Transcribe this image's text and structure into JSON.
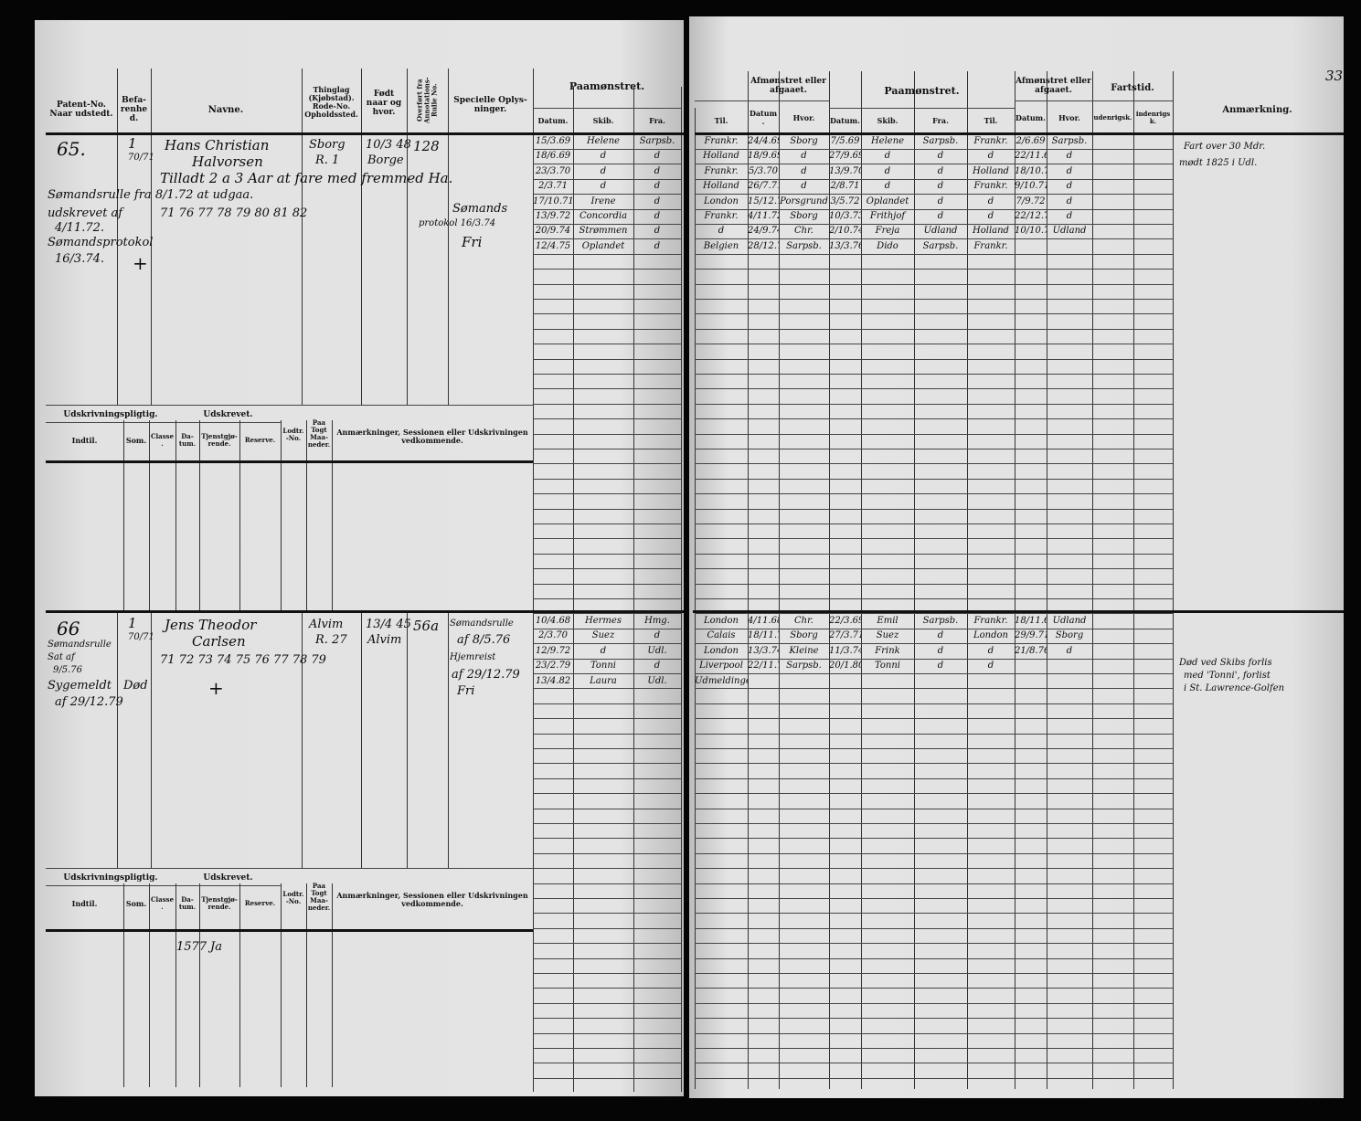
{
  "page_number": "33",
  "headers": {
    "patent": "Patent-No. Naar udstedt.",
    "befarenhed": "Befa-renhed.",
    "navne": "Navne.",
    "thinglag": "Thinglag (Kjøbstad). Rode-No. Opholdssted.",
    "fodt": "Født naar og hvor.",
    "overfort": "Overført fra Annotations-Rulle No.",
    "specielle": "Specielle Oplys-ninger.",
    "paamonstret": "Paamønstret.",
    "datum": "Datum.",
    "skib": "Skib.",
    "fra": "Fra.",
    "til": "Til.",
    "afmonstret": "Afmønstret eller afgaaet.",
    "hvor": "Hvor.",
    "fartstid": "Fartstid.",
    "udenrigsk": "udenrigsk.",
    "indenrigsk": "indenrigsk.",
    "anmaerkning": "Anmærkning."
  },
  "sub_headers": {
    "udskrivningspligtig": "Udskrivningspligtig.",
    "udskrevet": "Udskrevet.",
    "indtil": "Indtil.",
    "som": "Som.",
    "classe": "Classe.",
    "datum": "Da-tum.",
    "tjenstgjorende": "Tjenstgjø-rende.",
    "reserve": "Reserve.",
    "lodtr": "Lodtr.-No.",
    "paa_togt": "Paa Togt Maa-neder.",
    "anmaerkninger": "Anmærkninger, Sessionen eller Udskrivningen vedkommende."
  },
  "entries": [
    {
      "number": "65.",
      "befarenhed": "1",
      "befarenhed_years": "70/71",
      "name_first": "Hans Christian",
      "name_last": "Halvorsen",
      "thinglag": "Sborg",
      "rode": "R. 1",
      "fodt_date": "10/3 48",
      "fodt_place": "Borge",
      "overfort": "128",
      "note_line1": "Tilladt 2 a 3 Aar at fare med fremmed Ha.",
      "note_line2": "Sømandsrulle fra 8/1.72 at udgaa.",
      "years": "71 76 77 78 79 80 81 82",
      "patent_note1": "udskrevet af",
      "patent_note2": "4/11.72.",
      "patent_note3": "Sømandsprotokol",
      "patent_note4": "16/3.74.",
      "special1": "Sømands",
      "special2": "protokol 16/3.74",
      "special3": "Fri",
      "cross": "+",
      "left_rows": [
        [
          "15/3.69",
          "Helene",
          "Sarpsb."
        ],
        [
          "18/6.69",
          "d",
          "d"
        ],
        [
          "23/3.70",
          "d",
          "d"
        ],
        [
          "2/3.71",
          "d",
          "d"
        ],
        [
          "17/10.71",
          "Irene",
          "d"
        ],
        [
          "13/9.72",
          "Concordia",
          "d"
        ],
        [
          "20/9.74",
          "Strømmen",
          "d"
        ],
        [
          "12/4.75",
          "Oplandet",
          "d"
        ]
      ],
      "right_rows": [
        [
          "Frankr.",
          "24/4.69",
          "Sborg",
          "7/5.69",
          "Helene",
          "Sarpsb.",
          "Frankr.",
          "2/6.69",
          "Sarpsb."
        ],
        [
          "Holland",
          "18/9.69",
          "d",
          "27/9.69",
          "d",
          "d",
          "d",
          "22/11.69",
          "d"
        ],
        [
          "Frankr.",
          "5/3.70",
          "d",
          "13/9.70",
          "d",
          "d",
          "Holland",
          "18/10.70",
          "d"
        ],
        [
          "Holland",
          "26/7.71",
          "d",
          "2/8.71",
          "d",
          "d",
          "Frankr.",
          "9/10.71",
          "d"
        ],
        [
          "London",
          "15/12.71",
          "Porsgrund",
          "3/5.72",
          "Oplandet",
          "d",
          "d",
          "7/9.72",
          "d"
        ],
        [
          "Frankr.",
          "4/11.72",
          "Sborg",
          "10/3.73",
          "Frithjof",
          "d",
          "d",
          "22/12.73",
          "d"
        ],
        [
          "d",
          "24/9.74",
          "Chr.",
          "2/10.74",
          "Freja",
          "Udland",
          "Holland",
          "10/10.74",
          "Udland"
        ],
        [
          "Belgien",
          "28/12.75",
          "Sarpsb.",
          "13/3.76",
          "Dido",
          "Sarpsb.",
          "Frankr.",
          "",
          ""
        ]
      ],
      "remark1": "Fart over 30 Mdr.",
      "remark2": "mødt 1825 i Udl."
    },
    {
      "number": "66",
      "befarenhed": "1",
      "befarenhed_years": "70/71",
      "name_first": "Jens Theodor",
      "name_last": "Carlsen",
      "thinglag": "Alvim",
      "rode": "R. 27",
      "fodt_date": "13/4 45",
      "fodt_place": "Alvim",
      "overfort": "56a",
      "years": "71 72 73 74 75 76 77 78 79",
      "patent_note1": "Sømandsrulle",
      "patent_note2": "Sat af",
      "patent_note3": "9/5.76",
      "patent_note4": "Sygemeldt",
      "patent_note5": "af 29/12.79",
      "dod": "Død",
      "cross": "+",
      "special1": "Sømandsrulle",
      "special2": "af 8/5.76",
      "special3": "Hjemreist",
      "special4": "af 29/12.79",
      "special5": "Fri",
      "left_rows": [
        [
          "10/4.68",
          "Hermes",
          "Hmg."
        ],
        [
          "2/3.70",
          "Suez",
          "d"
        ],
        [
          "12/9.72",
          "d",
          "Udl."
        ],
        [
          "23/2.79",
          "Tonni",
          "d"
        ],
        [
          "13/4.82",
          "Laura",
          "Udl."
        ]
      ],
      "right_rows": [
        [
          "London",
          "4/11.68",
          "Chr.",
          "22/3.69",
          "Emil",
          "Sarpsb.",
          "Frankr.",
          "18/11.69",
          "Udland"
        ],
        [
          "Calais",
          "18/11.70",
          "Sborg",
          "27/3.71",
          "Suez",
          "d",
          "London",
          "29/9.71",
          "Sborg"
        ],
        [
          "London",
          "13/3.74",
          "Kleine",
          "11/3.74",
          "Frink",
          "d",
          "d",
          "21/8.76",
          "d"
        ],
        [
          "Liverpool",
          "22/11.79",
          "Sarpsb.",
          "20/1.80",
          "Tonni",
          "d",
          "d",
          "",
          ""
        ],
        [
          "Udmeldingen",
          "",
          "",
          "",
          "",
          "",
          "",
          "",
          ""
        ]
      ],
      "remark1": "Død ved Skibs forlis",
      "remark2": "med 'Tonni', forlist",
      "remark3": "i St. Lawrence-Golfen",
      "sub_datum": "1577",
      "sub_tjenst": "Ja"
    }
  ]
}
